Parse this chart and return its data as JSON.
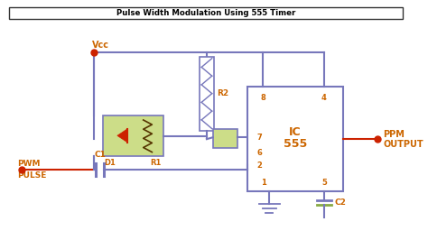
{
  "bg_color": "#ffffff",
  "wire_color": "#7777bb",
  "red_color": "#cc2200",
  "brown_wire": "#993300",
  "text_color": "#cc6600",
  "green_fill": "#ccdd88",
  "ic_border": "#7777bb",
  "title_text": "Pulse Width Modulation Using 555 Timer",
  "label_vcc": "Vcc",
  "label_d1": "D1",
  "label_r1": "R1",
  "label_r2": "R2",
  "label_c1": "C1",
  "label_c2": "C2",
  "label_ic": "IC",
  "label_555": "555",
  "label_pwm1": "PWM",
  "label_pwm2": "PULSE",
  "label_ppm1": "PPM",
  "label_ppm2": "OUTPUT",
  "pin8": "8",
  "pin4": "4",
  "pin7": "7",
  "pin6": "6",
  "pin2": "2",
  "pin1": "1",
  "pin5": "5",
  "fig_width": 4.74,
  "fig_height": 2.66,
  "dpi": 100
}
